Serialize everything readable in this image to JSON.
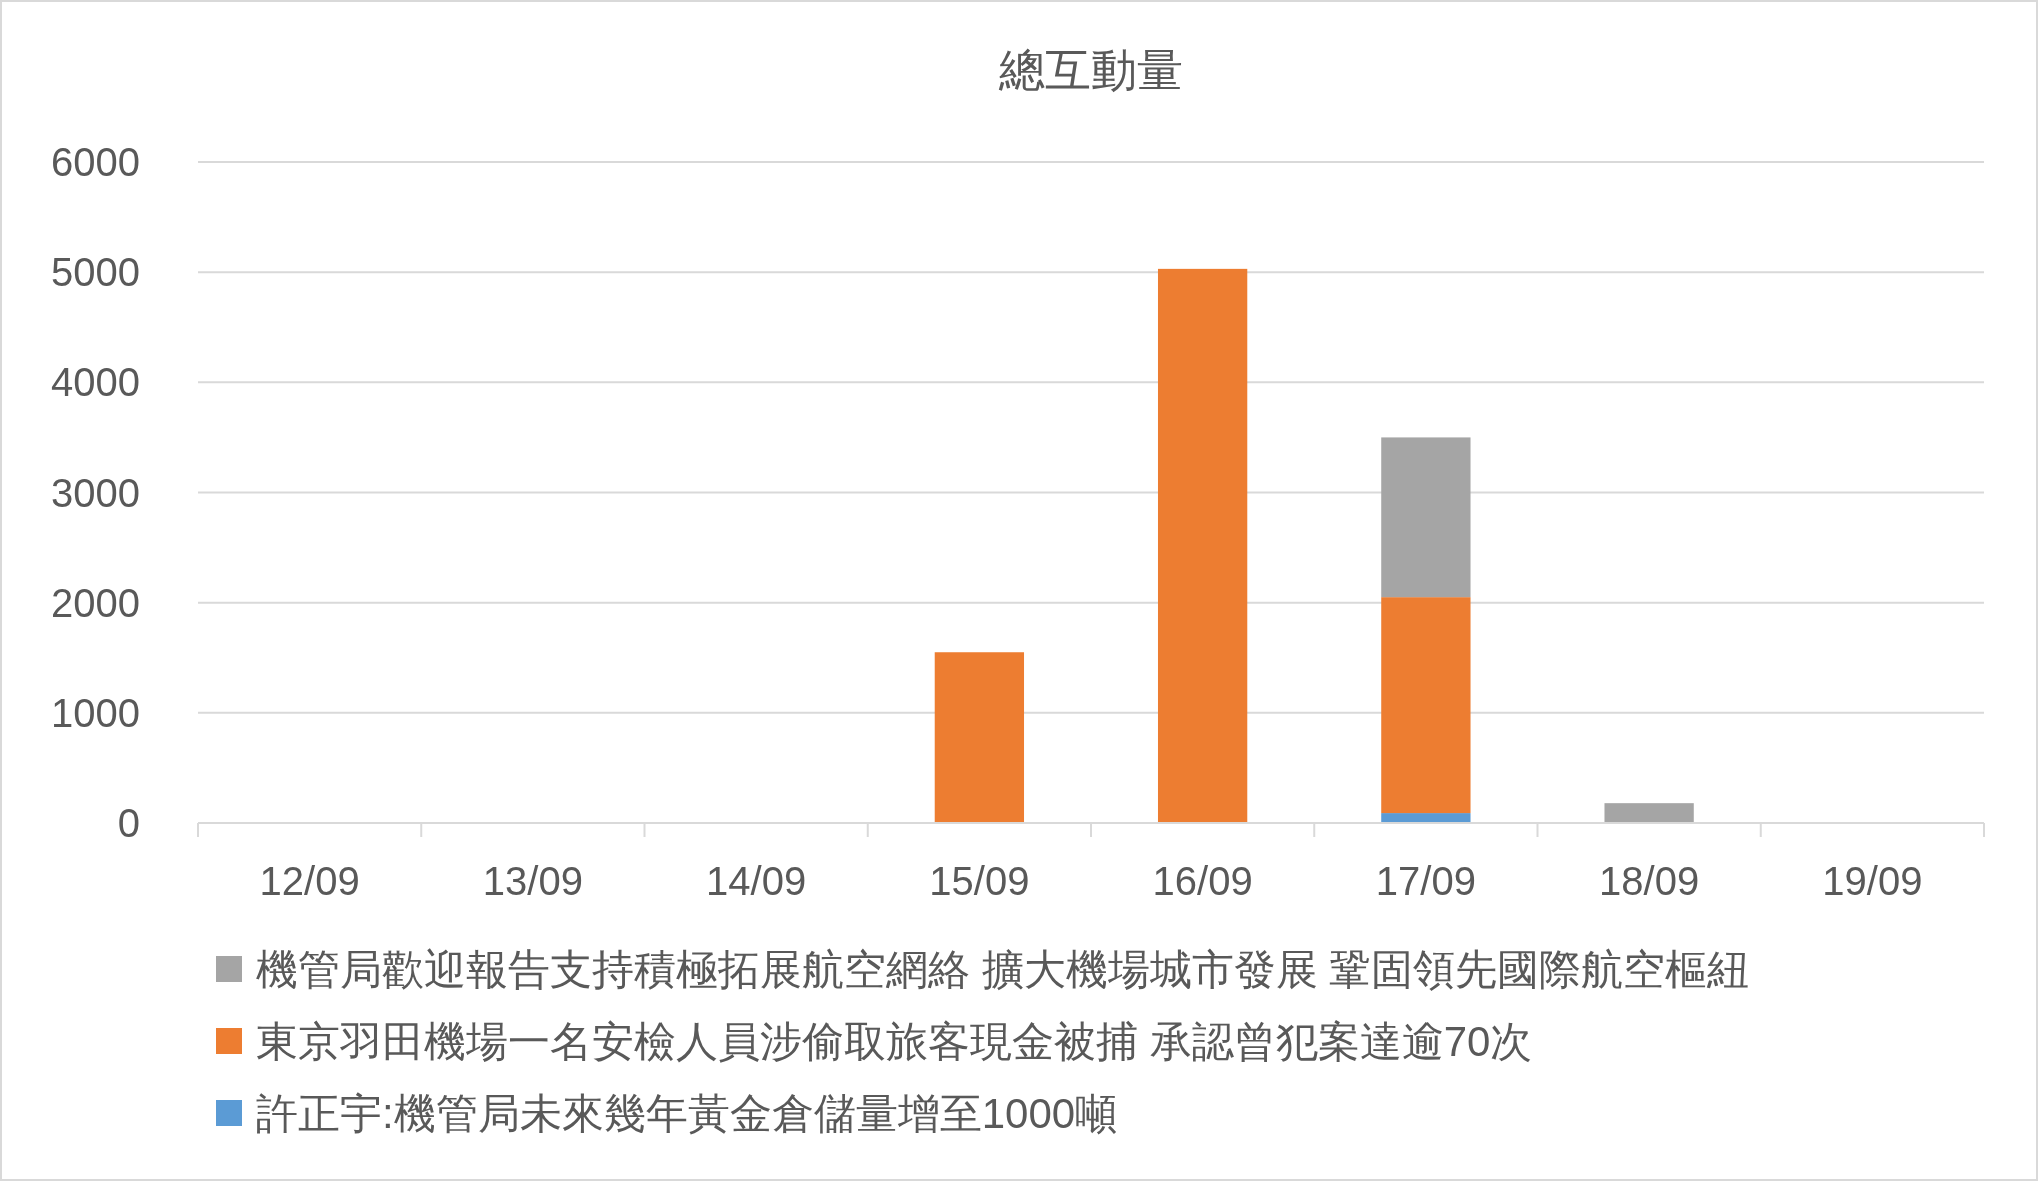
{
  "chart_data": {
    "type": "bar",
    "title": "總互動量",
    "stacked": true,
    "categories": [
      "12/09",
      "13/09",
      "14/09",
      "15/09",
      "16/09",
      "17/09",
      "18/09",
      "19/09"
    ],
    "series": [
      {
        "name": "許正宇:機管局未來幾年黃金倉儲量增至1000噸",
        "color": "#5b9bd5",
        "values": [
          null,
          null,
          null,
          null,
          null,
          90,
          null,
          null
        ]
      },
      {
        "name": "東京羽田機場一名安檢人員涉偷取旅客現金被捕 承認曾犯案達逾70次",
        "color": "#ed7d31",
        "values": [
          null,
          null,
          null,
          1550,
          5030,
          1960,
          null,
          null
        ]
      },
      {
        "name": "機管局歡迎報告支持積極拓展航空網絡 擴大機場城市發展 鞏固領先國際航空樞紐",
        "color": "#a5a5a5",
        "values": [
          null,
          null,
          null,
          null,
          null,
          1450,
          180,
          null
        ]
      }
    ],
    "ylim": [
      0,
      6000
    ],
    "yticks": [
      0,
      1000,
      2000,
      3000,
      4000,
      5000,
      6000
    ],
    "grid": "y",
    "legend": "bottom"
  }
}
